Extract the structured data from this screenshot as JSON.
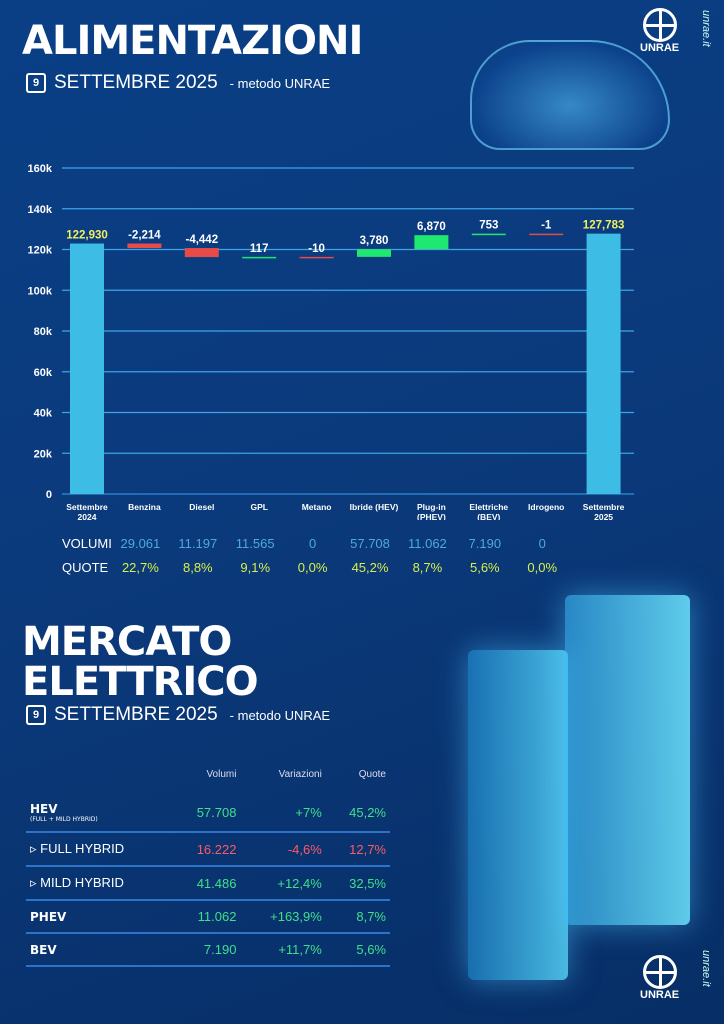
{
  "header": {
    "title": "ALIMENTAZIONI",
    "calendar_day": "9",
    "period": "SETTEMBRE 2025",
    "method": "- metodo UNRAE"
  },
  "logo": {
    "text": "UNRAE",
    "site": "unrae.it"
  },
  "chart_data": {
    "type": "waterfall",
    "categories": [
      "Settembre 2024",
      "Benzina",
      "Diesel",
      "GPL",
      "Metano",
      "Ibride (HEV)",
      "Plug-in (PHEV)",
      "Elettriche (BEV)",
      "Idrogeno",
      "Settembre 2025"
    ],
    "category_lines": [
      [
        "Settembre",
        "2024"
      ],
      [
        "Benzina"
      ],
      [
        "Diesel"
      ],
      [
        "GPL"
      ],
      [
        "Metano"
      ],
      [
        "Ibride (HEV)"
      ],
      [
        "Plug-in",
        "(PHEV)"
      ],
      [
        "Elettriche",
        "(BEV)"
      ],
      [
        "Idrogeno"
      ],
      [
        "Settembre",
        "2025"
      ]
    ],
    "values": [
      122930,
      -2214,
      -4442,
      117,
      -10,
      3780,
      6870,
      753,
      -1,
      127783
    ],
    "labels": [
      "122,930",
      "-2,214",
      "-4,442",
      "117",
      "-10",
      "3,780",
      "6,870",
      "753",
      "-1",
      "127,783"
    ],
    "kinds": [
      "total",
      "delta",
      "delta",
      "delta",
      "delta",
      "delta",
      "delta",
      "delta",
      "delta",
      "total"
    ],
    "yticks": [
      "0",
      "20k",
      "40k",
      "60k",
      "80k",
      "100k",
      "120k",
      "140k",
      "160k"
    ],
    "ylim": [
      0,
      160000
    ],
    "grid": true,
    "colors": {
      "total": "#3dbde6",
      "neg": "#e84a4a",
      "pos": "#1ee870",
      "total_label": "#f0f060"
    }
  },
  "volumi": {
    "label": "VOLUMI",
    "values": [
      "29.061",
      "11.197",
      "11.565",
      "0",
      "57.708",
      "11.062",
      "7.190",
      "0"
    ]
  },
  "quote": {
    "label": "QUOTE",
    "values": [
      "22,7%",
      "8,8%",
      "9,1%",
      "0,0%",
      "45,2%",
      "8,7%",
      "5,6%",
      "0,0%"
    ]
  },
  "section2": {
    "title_line1": "MERCATO",
    "title_line2": "ELETTRICO",
    "calendar_day": "9",
    "period": "SETTEMBRE 2025",
    "method": "- metodo UNRAE"
  },
  "table": {
    "headers": [
      "",
      "Volumi",
      "Variazioni",
      "Quote"
    ],
    "rows": [
      {
        "name": "HEV",
        "note": "(FULL + MILD HYBRID)",
        "volumi": "57.708",
        "var": "+7%",
        "quote": "45,2%"
      },
      {
        "name": "▹ FULL HYBRID",
        "volumi": "16.222",
        "var": "-4,6%",
        "quote": "12,7%"
      },
      {
        "name": "▹ MILD HYBRID",
        "volumi": "41.486",
        "var": "+12,4%",
        "quote": "32,5%"
      },
      {
        "name": "PHEV",
        "volumi": "11.062",
        "var": "+163,9%",
        "quote": "8,7%"
      },
      {
        "name": "BEV",
        "volumi": "7.190",
        "var": "+11,7%",
        "quote": "5,6%"
      }
    ]
  }
}
